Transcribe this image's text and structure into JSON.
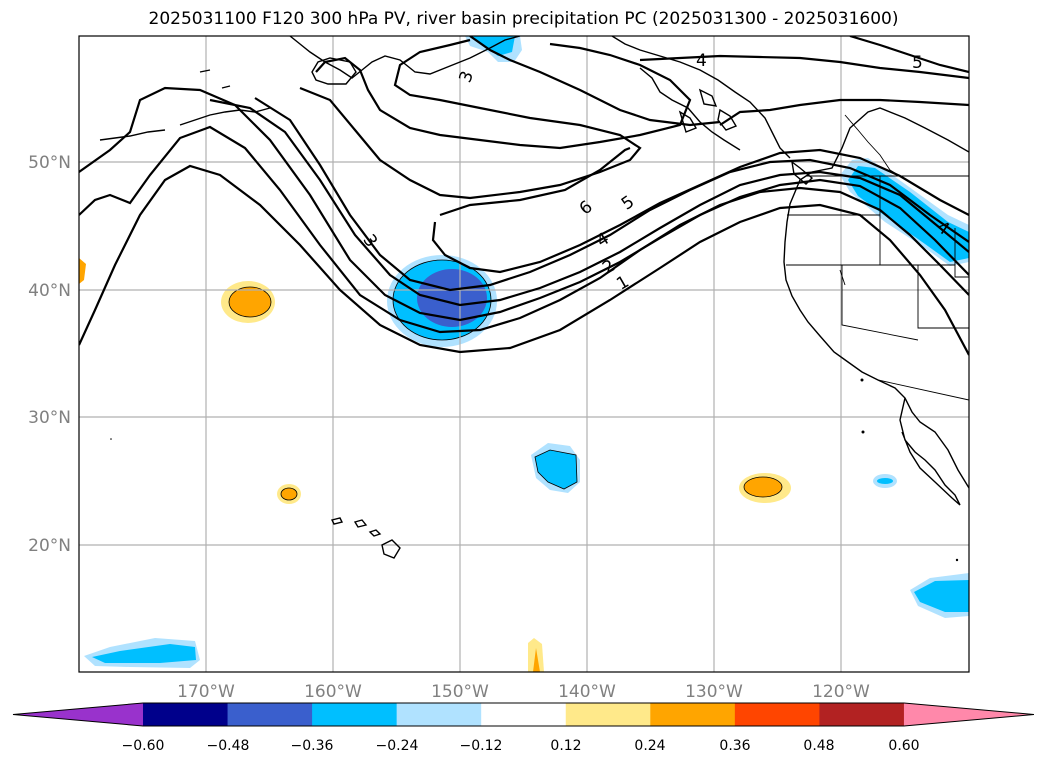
{
  "title": "2025031100 F120 300 hPa PV, river basin precipitation PC (2025031300 - 2025031600)",
  "lat_labels": [
    "50°N",
    "40°N",
    "30°N",
    "20°N"
  ],
  "lon_labels": [
    "170°W",
    "160°W",
    "150°W",
    "140°W",
    "130°W",
    "120°W"
  ],
  "pv_contour_labels": [
    "3",
    "4",
    "5",
    "6",
    "5",
    "4",
    "3",
    "2",
    "1",
    "4"
  ],
  "colorbar": {
    "ticks": [
      "−0.60",
      "−0.48",
      "−0.36",
      "−0.24",
      "−0.12",
      "0.12",
      "0.24",
      "0.36",
      "0.48",
      "0.60"
    ],
    "colors": [
      "#9932CC",
      "#00008B",
      "#3A5FCD",
      "#00BFFF",
      "#B0E2FF",
      "#FFFFFF",
      "#FFE98A",
      "#FFA500",
      "#FF4500",
      "#B22222",
      "#FF88AA"
    ]
  }
}
